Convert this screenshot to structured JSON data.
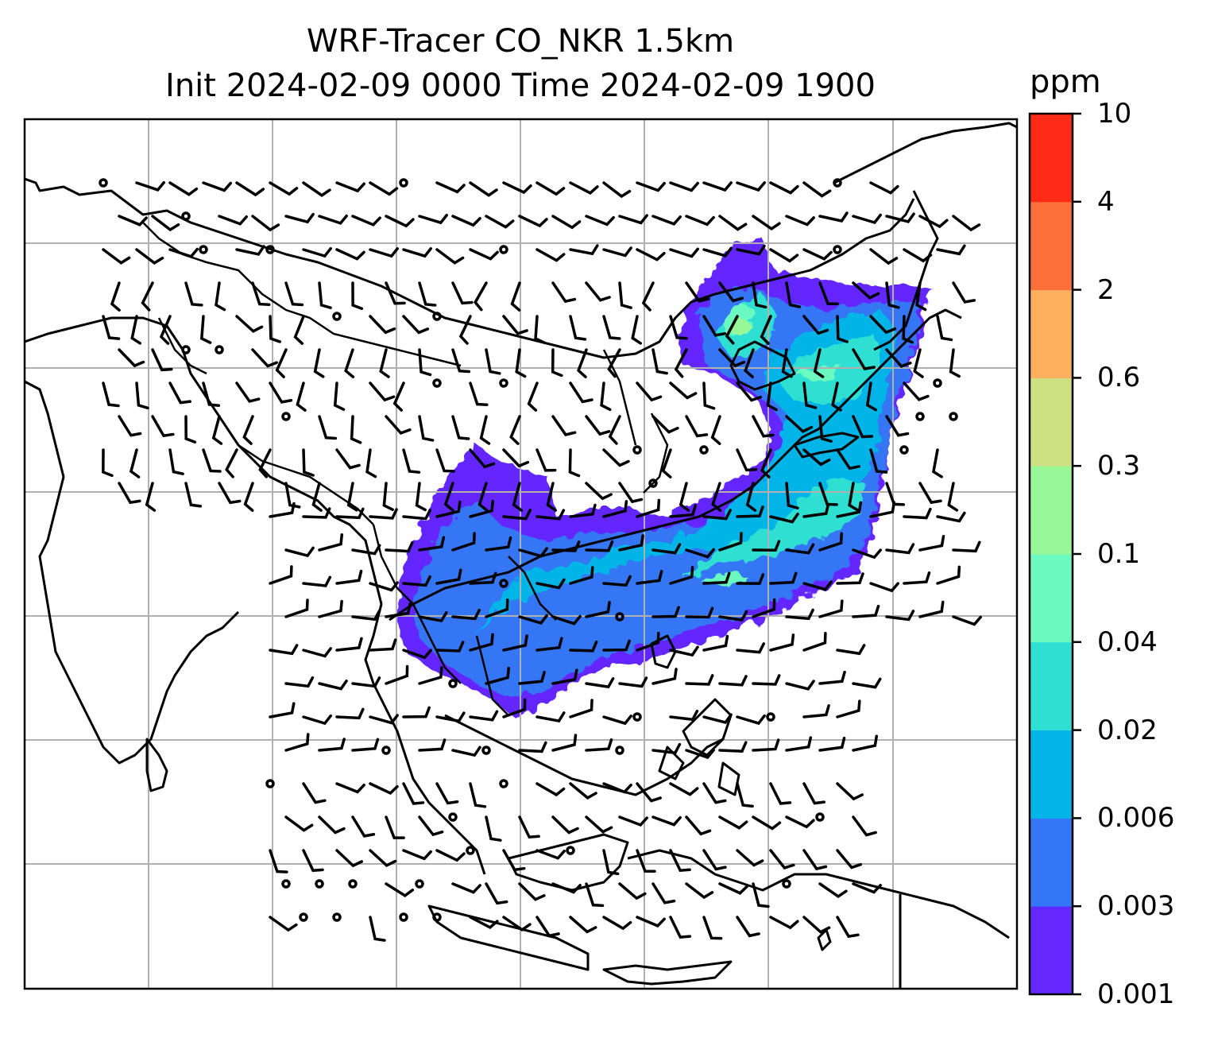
{
  "title_line1": "WRF-Tracer CO_NKR 1.5km",
  "title_line2": "Init 2024-02-09 0000 Time 2024-02-09 1900",
  "colorbar": {
    "unit": "ppm",
    "levels": [
      "0.001",
      "0.003",
      "0.006",
      "0.02",
      "0.04",
      "0.1",
      "0.3",
      "0.6",
      "2",
      "4",
      "10"
    ],
    "colors": [
      "#6428ff",
      "#3476f5",
      "#02b4e8",
      "#2edfd2",
      "#6bf9be",
      "#98f797",
      "#cfe083",
      "#feb05e",
      "#ff6f3a",
      "#ff2b16"
    ]
  },
  "map": {
    "field": "CO_NKR tracer concentration",
    "overlay": "wind barbs",
    "gridlines": true,
    "coastlines": true,
    "country_borders": true
  }
}
